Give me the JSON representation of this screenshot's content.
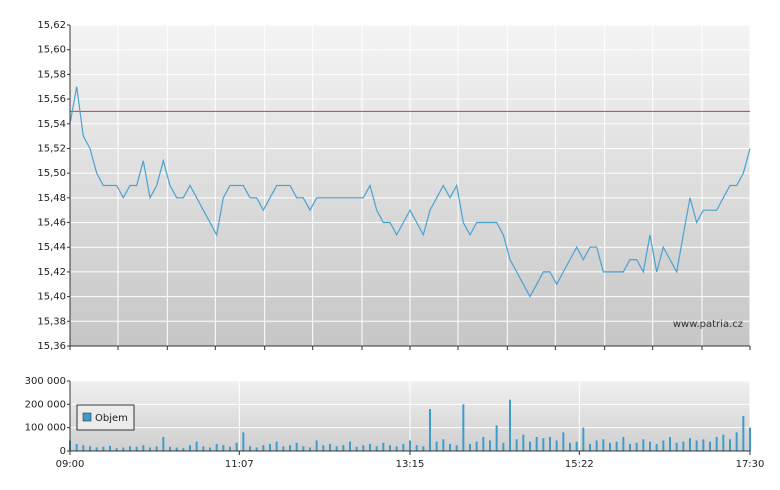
{
  "chart_data": [
    {
      "type": "line",
      "x": [
        "09:00",
        "09:05",
        "09:10",
        "09:15",
        "09:20",
        "09:25",
        "09:30",
        "09:35",
        "09:40",
        "09:45",
        "09:50",
        "09:55",
        "10:00",
        "10:05",
        "10:10",
        "10:15",
        "10:20",
        "10:25",
        "10:30",
        "10:35",
        "10:40",
        "10:45",
        "10:50",
        "10:55",
        "11:00",
        "11:05",
        "11:10",
        "11:15",
        "11:20",
        "11:25",
        "11:30",
        "11:35",
        "11:40",
        "11:45",
        "11:50",
        "11:55",
        "12:00",
        "12:05",
        "12:10",
        "12:15",
        "12:20",
        "12:25",
        "12:30",
        "12:35",
        "12:40",
        "12:45",
        "12:50",
        "12:55",
        "13:00",
        "13:05",
        "13:10",
        "13:15",
        "13:20",
        "13:25",
        "13:30",
        "13:35",
        "13:40",
        "13:45",
        "13:50",
        "13:55",
        "14:00",
        "14:05",
        "14:10",
        "14:15",
        "14:20",
        "14:25",
        "14:30",
        "14:35",
        "14:40",
        "14:45",
        "14:50",
        "14:55",
        "15:00",
        "15:05",
        "15:10",
        "15:15",
        "15:20",
        "15:25",
        "15:30",
        "15:35",
        "15:40",
        "15:45",
        "15:50",
        "15:55",
        "16:00",
        "16:05",
        "16:10",
        "16:15",
        "16:20",
        "16:25",
        "16:30",
        "16:35",
        "16:40",
        "16:45",
        "16:50",
        "16:55",
        "17:00",
        "17:05",
        "17:10",
        "17:15",
        "17:20",
        "17:25",
        "17:30"
      ],
      "values": [
        15.54,
        15.57,
        15.53,
        15.52,
        15.5,
        15.49,
        15.49,
        15.49,
        15.48,
        15.49,
        15.49,
        15.51,
        15.48,
        15.49,
        15.51,
        15.49,
        15.48,
        15.48,
        15.49,
        15.48,
        15.47,
        15.46,
        15.45,
        15.48,
        15.49,
        15.49,
        15.49,
        15.48,
        15.48,
        15.47,
        15.48,
        15.49,
        15.49,
        15.49,
        15.48,
        15.48,
        15.47,
        15.48,
        15.48,
        15.48,
        15.48,
        15.48,
        15.48,
        15.48,
        15.48,
        15.49,
        15.47,
        15.46,
        15.46,
        15.45,
        15.46,
        15.47,
        15.46,
        15.45,
        15.47,
        15.48,
        15.49,
        15.48,
        15.49,
        15.46,
        15.45,
        15.46,
        15.46,
        15.46,
        15.46,
        15.45,
        15.43,
        15.42,
        15.41,
        15.4,
        15.41,
        15.42,
        15.42,
        15.41,
        15.42,
        15.43,
        15.44,
        15.43,
        15.44,
        15.44,
        15.42,
        15.42,
        15.42,
        15.42,
        15.43,
        15.43,
        15.42,
        15.45,
        15.42,
        15.44,
        15.43,
        15.42,
        15.45,
        15.48,
        15.46,
        15.47,
        15.47,
        15.47,
        15.48,
        15.49,
        15.49,
        15.5,
        15.52
      ],
      "color": "#4aa3d0",
      "reference_line": 15.55,
      "reference_color": "#d9304a",
      "xlim": [
        "09:00",
        "17:30"
      ],
      "xticks": [
        "09:00",
        "09:36",
        "10:13",
        "10:49",
        "11:26",
        "12:02",
        "12:39",
        "13:15",
        "13:51",
        "14:28",
        "15:04",
        "15:41",
        "16:17",
        "16:54",
        "17:30"
      ],
      "ylim": [
        15.36,
        15.62
      ],
      "yticks": [
        {
          "value": 15.36,
          "label": "15,36"
        },
        {
          "value": 15.38,
          "label": "15,38"
        },
        {
          "value": 15.4,
          "label": "15,40"
        },
        {
          "value": 15.42,
          "label": "15,42"
        },
        {
          "value": 15.44,
          "label": "15,44"
        },
        {
          "value": 15.46,
          "label": "15,46"
        },
        {
          "value": 15.48,
          "label": "15,48"
        },
        {
          "value": 15.5,
          "label": "15,50"
        },
        {
          "value": 15.52,
          "label": "15,52"
        },
        {
          "value": 15.54,
          "label": "15,54"
        },
        {
          "value": 15.56,
          "label": "15,56"
        },
        {
          "value": 15.58,
          "label": "15,58"
        },
        {
          "value": 15.6,
          "label": "15,60"
        },
        {
          "value": 15.62,
          "label": "15,62"
        }
      ],
      "grid": true,
      "watermark": "www.patria.cz"
    },
    {
      "type": "bar",
      "x": [
        "09:00",
        "09:05",
        "09:10",
        "09:15",
        "09:20",
        "09:25",
        "09:30",
        "09:35",
        "09:40",
        "09:45",
        "09:50",
        "09:55",
        "10:00",
        "10:05",
        "10:10",
        "10:15",
        "10:20",
        "10:25",
        "10:30",
        "10:35",
        "10:40",
        "10:45",
        "10:50",
        "10:55",
        "11:00",
        "11:05",
        "11:10",
        "11:15",
        "11:20",
        "11:25",
        "11:30",
        "11:35",
        "11:40",
        "11:45",
        "11:50",
        "11:55",
        "12:00",
        "12:05",
        "12:10",
        "12:15",
        "12:20",
        "12:25",
        "12:30",
        "12:35",
        "12:40",
        "12:45",
        "12:50",
        "12:55",
        "13:00",
        "13:05",
        "13:10",
        "13:15",
        "13:20",
        "13:25",
        "13:30",
        "13:35",
        "13:40",
        "13:45",
        "13:50",
        "13:55",
        "14:00",
        "14:05",
        "14:10",
        "14:15",
        "14:20",
        "14:25",
        "14:30",
        "14:35",
        "14:40",
        "14:45",
        "14:50",
        "14:55",
        "15:00",
        "15:05",
        "15:10",
        "15:15",
        "15:20",
        "15:25",
        "15:30",
        "15:35",
        "15:40",
        "15:45",
        "15:50",
        "15:55",
        "16:00",
        "16:05",
        "16:10",
        "16:15",
        "16:20",
        "16:25",
        "16:30",
        "16:35",
        "16:40",
        "16:45",
        "16:50",
        "16:55",
        "17:00",
        "17:05",
        "17:10",
        "17:15",
        "17:20",
        "17:25",
        "17:30"
      ],
      "series": [
        {
          "name": "Objem",
          "color": "#3d9ccc",
          "values": [
            45000,
            30000,
            25000,
            20000,
            15000,
            18000,
            22000,
            12000,
            15000,
            20000,
            18000,
            25000,
            15000,
            20000,
            60000,
            18000,
            15000,
            12000,
            25000,
            40000,
            20000,
            15000,
            30000,
            25000,
            18000,
            35000,
            80000,
            20000,
            15000,
            25000,
            30000,
            40000,
            20000,
            25000,
            35000,
            20000,
            15000,
            45000,
            25000,
            30000,
            20000,
            25000,
            40000,
            18000,
            25000,
            30000,
            20000,
            35000,
            25000,
            20000,
            30000,
            45000,
            25000,
            20000,
            180000,
            40000,
            50000,
            30000,
            25000,
            200000,
            30000,
            40000,
            60000,
            45000,
            110000,
            35000,
            220000,
            50000,
            70000,
            40000,
            60000,
            55000,
            60000,
            45000,
            80000,
            35000,
            40000,
            100000,
            30000,
            45000,
            50000,
            35000,
            40000,
            60000,
            30000,
            35000,
            50000,
            40000,
            30000,
            45000,
            60000,
            35000,
            40000,
            55000,
            45000,
            50000,
            40000,
            60000,
            70000,
            50000,
            80000,
            150000,
            100000
          ]
        }
      ],
      "xlim": [
        "09:00",
        "17:30"
      ],
      "xticks": [
        "09:00",
        "11:07",
        "13:15",
        "15:22",
        "17:30"
      ],
      "ylim": [
        0,
        300000
      ],
      "yticks": [
        0,
        {
          "value": 100000,
          "label": "100 000"
        },
        {
          "value": 200000,
          "label": "200 000"
        },
        {
          "value": 300000,
          "label": "300 000"
        }
      ],
      "grid": true,
      "legend": "top-left"
    }
  ]
}
